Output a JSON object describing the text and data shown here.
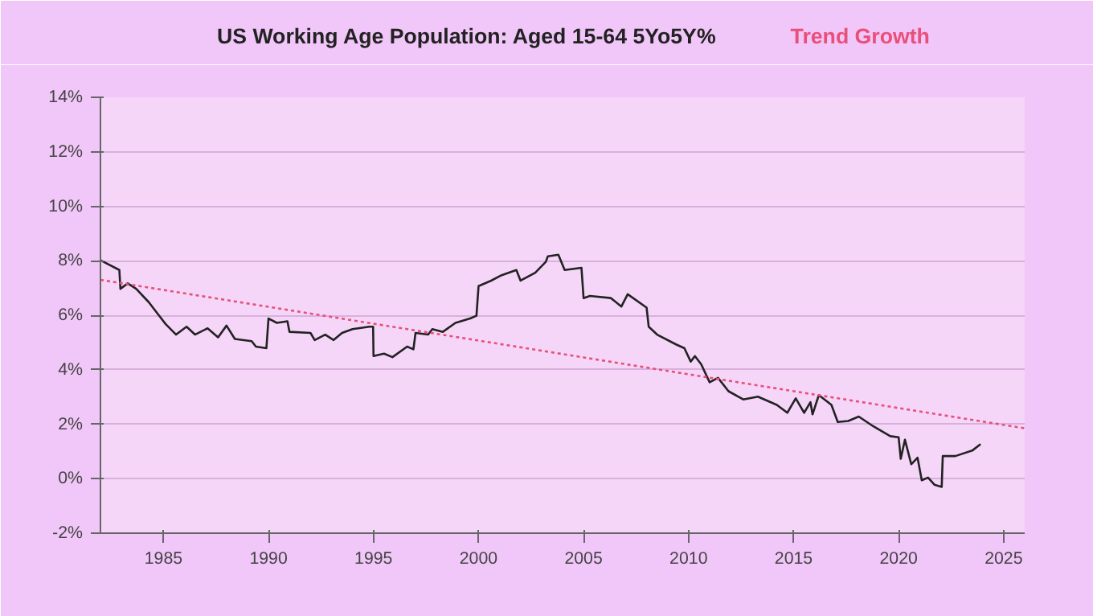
{
  "chart_data": {
    "type": "line",
    "xlim": [
      1982,
      2026
    ],
    "xticks": [
      1985,
      1990,
      1995,
      2000,
      2005,
      2010,
      2015,
      2020,
      2025
    ],
    "ylim": [
      -2,
      14
    ],
    "yticks": [
      {
        "value": -2,
        "label": "-2%"
      },
      {
        "value": 0,
        "label": "0%"
      },
      {
        "value": 2,
        "label": "2%"
      },
      {
        "value": 4,
        "label": "4%"
      },
      {
        "value": 6,
        "label": "6%"
      },
      {
        "value": 8,
        "label": "8%"
      },
      {
        "value": 10,
        "label": "10%"
      },
      {
        "value": 12,
        "label": "12%"
      },
      {
        "value": 14,
        "label": "14%"
      }
    ],
    "grid": "y",
    "legend": "top",
    "series": [
      {
        "name": "US Working Age Population: Aged 15-64 5Yo5Y%",
        "color": "#222222",
        "line_style": "solid",
        "x": [
          1982.0,
          1982.9,
          1982.95,
          1983.3,
          1983.7,
          1984.3,
          1984.8,
          1985.1,
          1985.6,
          1986.1,
          1986.5,
          1987.1,
          1987.6,
          1988.0,
          1988.4,
          1989.2,
          1989.4,
          1989.9,
          1990.0,
          1990.4,
          1990.9,
          1991.0,
          1992.0,
          1992.2,
          1992.7,
          1993.1,
          1993.5,
          1994.0,
          1994.8,
          1994.98,
          1995.0,
          1995.5,
          1995.9,
          1996.6,
          1996.9,
          1997.0,
          1997.6,
          1997.8,
          1998.3,
          1998.9,
          1999.6,
          1999.9,
          2000.0,
          2000.6,
          2001.1,
          2001.8,
          2002.0,
          2002.7,
          2003.2,
          2003.3,
          2003.8,
          2004.1,
          2004.9,
          2005.0,
          2005.3,
          2006.3,
          2006.8,
          2007.1,
          2008.0,
          2008.1,
          2008.5,
          2009.4,
          2009.8,
          2010.1,
          2010.3,
          2010.6,
          2011.0,
          2011.4,
          2011.9,
          2012.6,
          2013.3,
          2014.2,
          2014.7,
          2015.1,
          2015.5,
          2015.8,
          2015.9,
          2016.2,
          2016.8,
          2017.1,
          2017.6,
          2018.1,
          2018.8,
          2019.6,
          2020.0,
          2020.1,
          2020.3,
          2020.6,
          2020.9,
          2021.1,
          2021.4,
          2021.7,
          2022.05,
          2022.1,
          2022.7,
          2023.5,
          2023.9
        ],
        "values": [
          8.02,
          7.66,
          6.97,
          7.17,
          6.97,
          6.48,
          5.98,
          5.68,
          5.29,
          5.58,
          5.29,
          5.52,
          5.19,
          5.62,
          5.13,
          5.05,
          4.85,
          4.79,
          5.88,
          5.72,
          5.78,
          5.39,
          5.35,
          5.09,
          5.29,
          5.09,
          5.35,
          5.49,
          5.58,
          5.58,
          4.5,
          4.59,
          4.46,
          4.85,
          4.75,
          5.35,
          5.29,
          5.49,
          5.39,
          5.72,
          5.88,
          5.98,
          7.07,
          7.27,
          7.47,
          7.66,
          7.27,
          7.56,
          7.96,
          8.16,
          8.22,
          7.66,
          7.74,
          6.63,
          6.71,
          6.63,
          6.32,
          6.77,
          6.28,
          5.58,
          5.29,
          4.93,
          4.79,
          4.3,
          4.5,
          4.2,
          3.54,
          3.7,
          3.21,
          2.91,
          3.01,
          2.71,
          2.42,
          2.95,
          2.42,
          2.81,
          2.36,
          3.07,
          2.71,
          2.08,
          2.12,
          2.28,
          1.92,
          1.56,
          1.52,
          0.73,
          1.43,
          0.53,
          0.77,
          -0.06,
          0.04,
          -0.22,
          -0.3,
          0.83,
          0.83,
          1.03,
          1.27
        ]
      },
      {
        "name": "Trend Growth",
        "color": "#e8507a",
        "line_style": "dotted",
        "x": [
          1982,
          2026
        ],
        "values": [
          7.3,
          1.85
        ]
      }
    ]
  }
}
